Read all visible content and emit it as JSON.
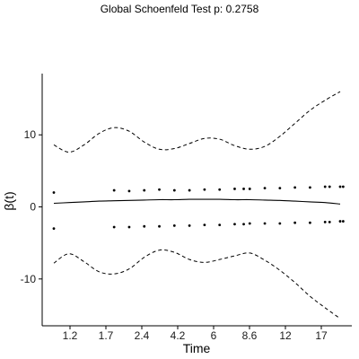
{
  "chart_data": {
    "type": "line",
    "title": "Global Schoenfeld Test p: 0.2758",
    "xlabel": "Time",
    "ylabel": "β(t)",
    "x_ticks": [
      "1.2",
      "1.7",
      "2.4",
      "4.2",
      "6",
      "8.6",
      "12",
      "17"
    ],
    "y_ticks": [
      -10,
      0,
      10
    ],
    "ylim": [
      -16.5,
      18.5
    ],
    "grid": false,
    "legend": "none",
    "series": [
      {
        "style": "solid",
        "x": [
          1,
          2,
          3,
          4,
          5,
          6,
          7,
          8,
          9,
          10,
          11,
          12,
          13,
          14,
          15,
          16,
          17,
          18,
          19,
          20
        ],
        "y": [
          0.5,
          0.6,
          0.7,
          0.8,
          0.85,
          0.9,
          0.95,
          1.0,
          1.0,
          1.05,
          1.05,
          1.05,
          1.0,
          1.0,
          0.95,
          0.9,
          0.8,
          0.7,
          0.6,
          0.4
        ]
      },
      {
        "style": "dashed",
        "x": [
          1,
          2,
          3,
          4,
          5,
          6,
          7,
          8,
          9,
          10,
          11,
          12,
          13,
          14,
          15,
          16,
          17,
          18,
          19,
          20
        ],
        "y": [
          8.6,
          7.6,
          8.6,
          10.2,
          11.0,
          10.5,
          9.0,
          8.0,
          8.1,
          8.8,
          9.5,
          9.4,
          8.5,
          8.0,
          8.4,
          9.8,
          11.6,
          13.4,
          14.8,
          16.0
        ]
      },
      {
        "style": "dashed",
        "x": [
          1,
          2,
          3,
          4,
          5,
          6,
          7,
          8,
          9,
          10,
          11,
          12,
          13,
          14,
          15,
          16,
          17,
          18,
          19,
          20
        ],
        "y": [
          -7.8,
          -6.5,
          -7.6,
          -9.0,
          -9.3,
          -8.6,
          -7.0,
          -6.0,
          -6.3,
          -7.3,
          -7.7,
          -7.3,
          -6.8,
          -6.4,
          -7.4,
          -8.8,
          -10.5,
          -12.4,
          -14.0,
          -15.5
        ]
      }
    ],
    "points": {
      "x": [
        1.0,
        5.0,
        6.0,
        7.0,
        8.0,
        9.0,
        10.0,
        11.0,
        12.0,
        13.0,
        13.6,
        14.0,
        15.0,
        16.0,
        17.0,
        18.0,
        19.0,
        19.3,
        20.0,
        20.2
      ],
      "upper_y": [
        2.0,
        2.3,
        2.2,
        2.3,
        2.4,
        2.3,
        2.3,
        2.4,
        2.4,
        2.5,
        2.5,
        2.5,
        2.6,
        2.6,
        2.7,
        2.7,
        2.8,
        2.8,
        2.8,
        2.8
      ],
      "lower_y": [
        -3.0,
        -2.8,
        -2.8,
        -2.7,
        -2.7,
        -2.6,
        -2.6,
        -2.5,
        -2.5,
        -2.4,
        -2.4,
        -2.3,
        -2.3,
        -2.3,
        -2.2,
        -2.2,
        -2.1,
        -2.1,
        -2.0,
        -2.0
      ]
    }
  }
}
